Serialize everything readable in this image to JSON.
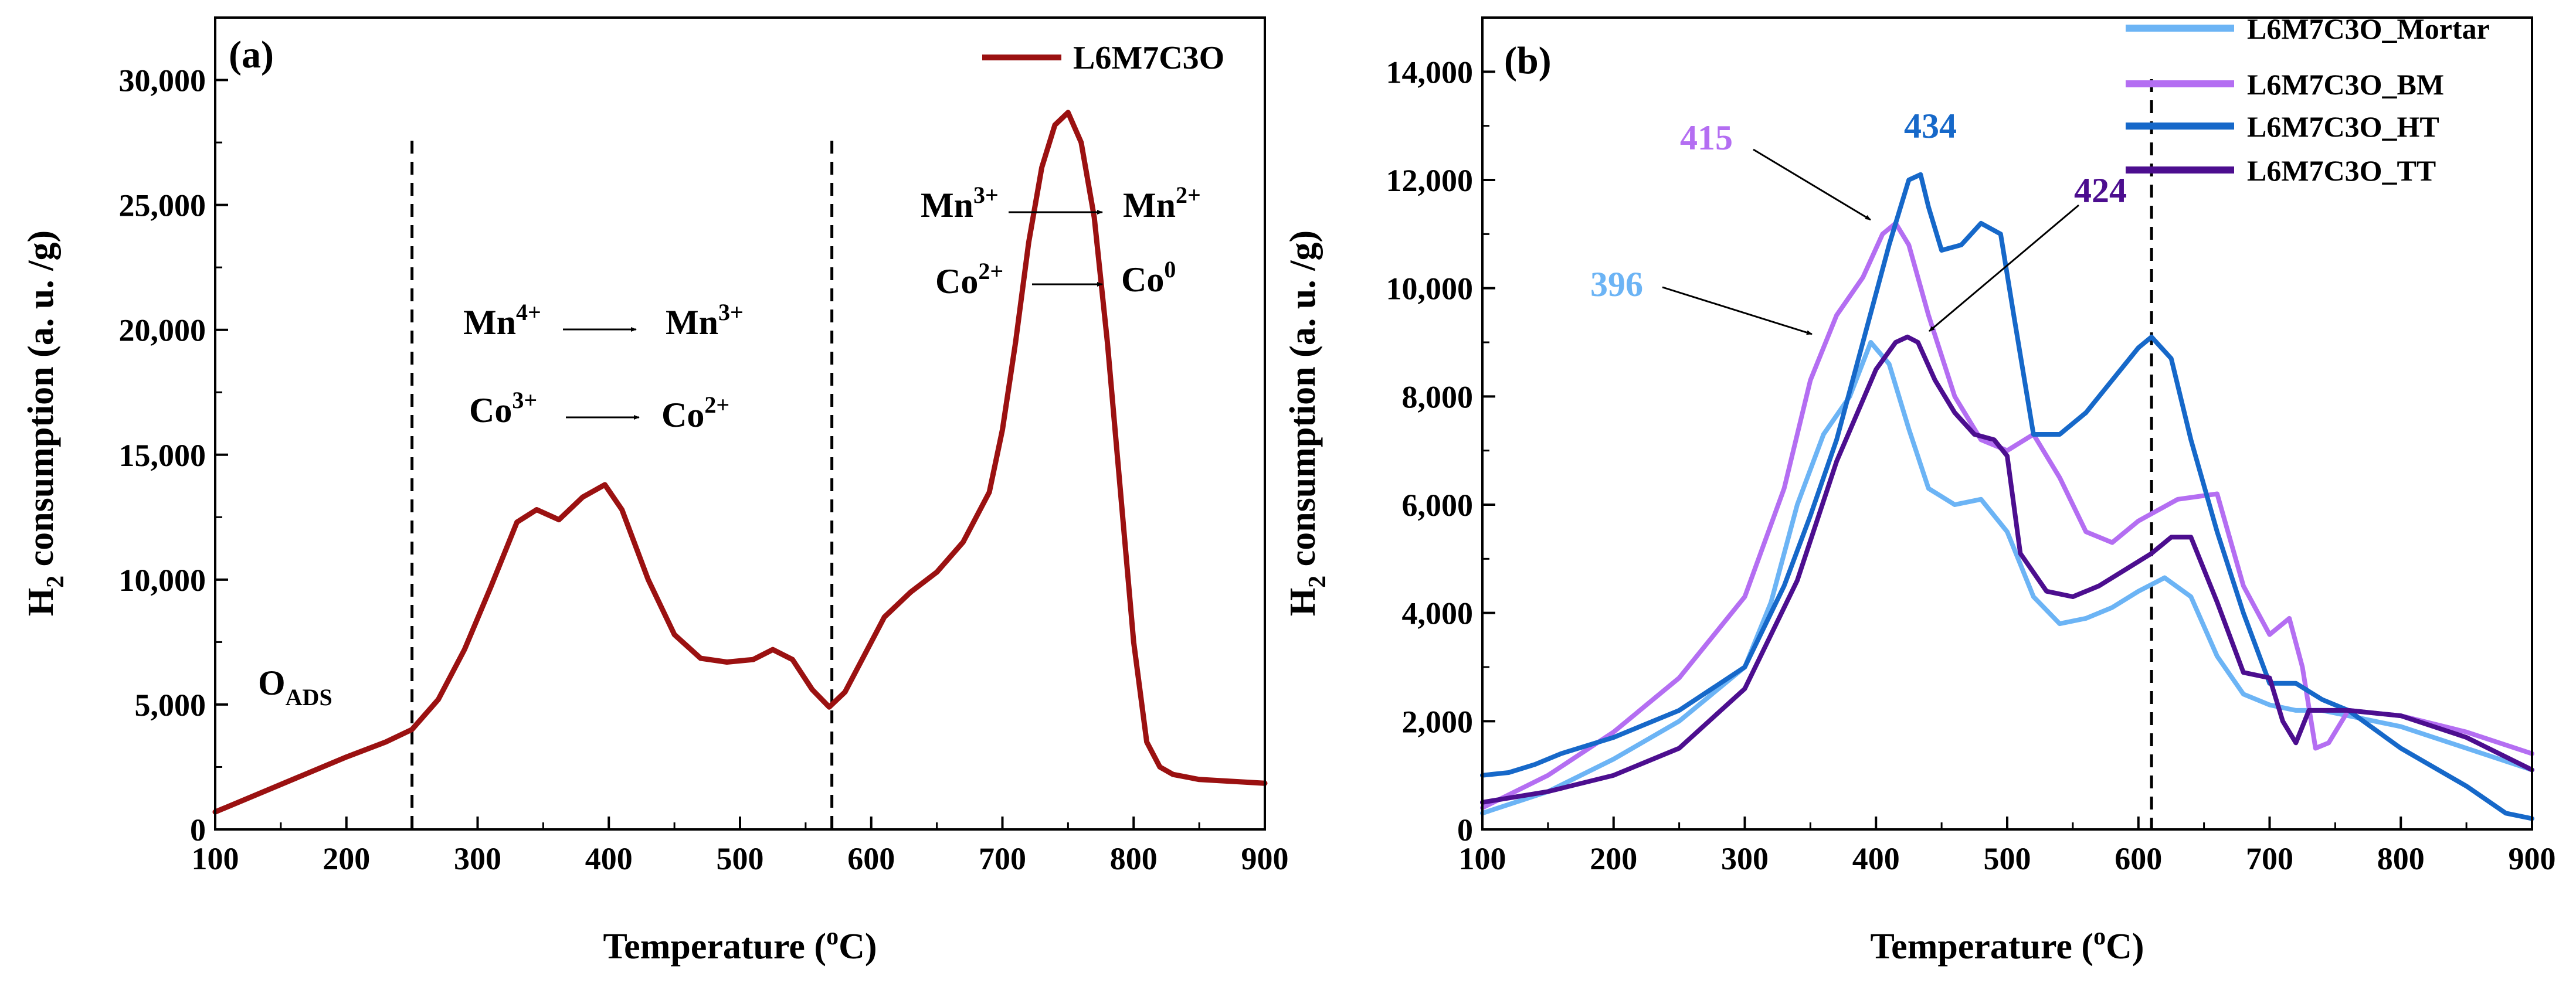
{
  "chart_data": [
    {
      "panel_label": "(a)",
      "type": "line",
      "xlabel": "Temperature (",
      "xlabel_sup": "o",
      "xlabel_suffix": "C)",
      "ylabel": "H",
      "ylabel_sub": "2",
      "ylabel_suffix": " consumption (a. u. /g)",
      "xlim": [
        100,
        900
      ],
      "ylim": [
        0,
        32500
      ],
      "xticks": [
        100,
        200,
        300,
        400,
        500,
        600,
        700,
        800,
        900
      ],
      "yticks": [
        0,
        5000,
        10000,
        15000,
        20000,
        25000,
        30000
      ],
      "ytick_labels": [
        "0",
        "5,000",
        "10,000",
        "15,000",
        "20,000",
        "25,000",
        "30,000"
      ],
      "legend_position": "top-right",
      "vlines": [
        250,
        570
      ],
      "series": [
        {
          "name": "L6M7C3O",
          "color": "#9b1111",
          "x": [
            100,
            150,
            200,
            230,
            250,
            270,
            290,
            310,
            330,
            345,
            362,
            380,
            397,
            410,
            430,
            450,
            470,
            490,
            510,
            525,
            540,
            555,
            568,
            580,
            595,
            610,
            630,
            650,
            670,
            690,
            700,
            710,
            720,
            730,
            740,
            750,
            760,
            770,
            780,
            790,
            800,
            810,
            820,
            830,
            850,
            900
          ],
          "y": [
            700,
            1800,
            2900,
            3500,
            4000,
            5200,
            7200,
            9700,
            12300,
            12800,
            12400,
            13300,
            13800,
            12800,
            10000,
            7800,
            6850,
            6700,
            6800,
            7200,
            6800,
            5600,
            4900,
            5500,
            7000,
            8500,
            9500,
            10300,
            11500,
            13500,
            16000,
            19500,
            23500,
            26500,
            28200,
            28700,
            27500,
            24500,
            19500,
            13500,
            7500,
            3500,
            2500,
            2200,
            2000,
            1850
          ]
        }
      ],
      "annotations": [
        {
          "base": "Mn",
          "sup": "4+",
          "arrow": true,
          "base2": "Mn",
          "sup2": "3+"
        },
        {
          "base": "Co",
          "sup": "3+",
          "arrow": true,
          "base2": "Co",
          "sup2": "2+"
        },
        {
          "base": "Mn",
          "sup": "3+",
          "arrow": true,
          "base2": "Mn",
          "sup2": "2+"
        },
        {
          "base": "Co",
          "sup": "2+",
          "arrow": true,
          "base2": "Co",
          "sup2": "0"
        },
        {
          "base": "O",
          "sub": "ADS"
        }
      ]
    },
    {
      "panel_label": "(b)",
      "type": "line",
      "xlabel": "Temperature (",
      "xlabel_sup": "o",
      "xlabel_suffix": "C)",
      "ylabel": "H",
      "ylabel_sub": "2",
      "ylabel_suffix": " consumption (a. u. /g)",
      "xlim": [
        100,
        900
      ],
      "ylim": [
        0,
        15000
      ],
      "xticks": [
        100,
        200,
        300,
        400,
        500,
        600,
        700,
        800,
        900
      ],
      "yticks": [
        0,
        2000,
        4000,
        6000,
        8000,
        10000,
        12000,
        14000
      ],
      "ytick_labels": [
        "0",
        "2,000",
        "4,000",
        "6,000",
        "8,000",
        "10,000",
        "12,000",
        "14,000"
      ],
      "legend_position": "top-right",
      "vlines": [
        610
      ],
      "series": [
        {
          "name": "L6M7C3O_Mortar",
          "color": "#6cb4f5",
          "x": [
            100,
            150,
            200,
            250,
            300,
            320,
            340,
            360,
            380,
            396,
            410,
            425,
            440,
            460,
            480,
            500,
            520,
            540,
            560,
            580,
            600,
            620,
            640,
            660,
            680,
            700,
            720,
            740,
            760,
            800,
            850,
            900
          ],
          "y": [
            300,
            700,
            1300,
            2000,
            3000,
            4200,
            6000,
            7300,
            8000,
            9000,
            8600,
            7400,
            6300,
            6000,
            6100,
            5500,
            4300,
            3800,
            3900,
            4100,
            4400,
            4650,
            4300,
            3200,
            2500,
            2300,
            2200,
            2200,
            2100,
            1900,
            1500,
            1100
          ]
        },
        {
          "name": "L6M7C3O_BM",
          "color": "#b46ef2",
          "x": [
            100,
            150,
            200,
            250,
            300,
            330,
            350,
            370,
            390,
            405,
            415,
            425,
            440,
            460,
            480,
            500,
            520,
            540,
            560,
            580,
            600,
            630,
            660,
            680,
            700,
            715,
            725,
            735,
            745,
            760,
            800,
            850,
            900
          ],
          "y": [
            400,
            1000,
            1800,
            2800,
            4300,
            6300,
            8300,
            9500,
            10200,
            11000,
            11200,
            10800,
            9500,
            8000,
            7200,
            7000,
            7300,
            6500,
            5500,
            5300,
            5700,
            6100,
            6200,
            4500,
            3600,
            3900,
            3000,
            1500,
            1600,
            2200,
            2100,
            1800,
            1400
          ]
        },
        {
          "name": "L6M7C3O_HT",
          "color": "#1668c9",
          "x": [
            100,
            120,
            140,
            160,
            200,
            250,
            300,
            330,
            350,
            370,
            390,
            410,
            425,
            434,
            440,
            450,
            465,
            480,
            495,
            505,
            520,
            540,
            560,
            580,
            600,
            610,
            625,
            640,
            660,
            680,
            700,
            720,
            740,
            760,
            800,
            850,
            880,
            900
          ],
          "y": [
            1000,
            1050,
            1200,
            1400,
            1700,
            2200,
            3000,
            4500,
            5800,
            7200,
            9000,
            10800,
            12000,
            12100,
            11500,
            10700,
            10800,
            11200,
            11000,
            9500,
            7300,
            7300,
            7700,
            8300,
            8900,
            9100,
            8700,
            7200,
            5500,
            4000,
            2700,
            2700,
            2400,
            2200,
            1500,
            800,
            300,
            200
          ]
        },
        {
          "name": "L6M7C3O_TT",
          "color": "#4c0e8f",
          "x": [
            100,
            150,
            200,
            250,
            300,
            340,
            370,
            400,
            415,
            424,
            432,
            445,
            460,
            475,
            490,
            500,
            510,
            530,
            550,
            570,
            590,
            610,
            625,
            640,
            660,
            680,
            700,
            710,
            720,
            730,
            760,
            800,
            850,
            900
          ],
          "y": [
            500,
            700,
            1000,
            1500,
            2600,
            4600,
            6800,
            8500,
            9000,
            9100,
            9000,
            8300,
            7700,
            7300,
            7200,
            6900,
            5100,
            4400,
            4300,
            4500,
            4800,
            5100,
            5400,
            5400,
            4200,
            2900,
            2800,
            2000,
            1600,
            2200,
            2200,
            2100,
            1700,
            1100
          ]
        }
      ],
      "peak_labels": [
        {
          "text": "396",
          "color": "#6cb4f5",
          "x": 396,
          "y": 9000
        },
        {
          "text": "415",
          "color": "#b46ef2",
          "x": 415,
          "y": 11100
        },
        {
          "text": "434",
          "color": "#1668c9",
          "x": 434,
          "y": 12100
        },
        {
          "text": "424",
          "color": "#4c0e8f",
          "x": 424,
          "y": 9100
        }
      ]
    }
  ]
}
